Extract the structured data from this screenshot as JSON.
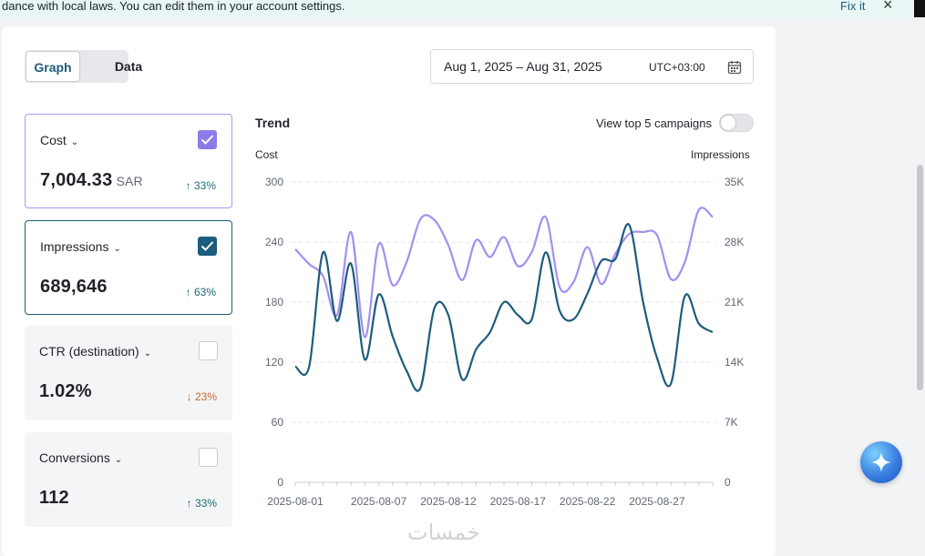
{
  "banner": {
    "message": "dance with local laws. You can edit them in your account settings.",
    "fix_label": "Fix it",
    "close_glyph": "×"
  },
  "view_toggle": {
    "graph_label": "Graph",
    "data_label": "Data",
    "selected": "Graph"
  },
  "date_picker": {
    "range": "Aug 1, 2025 – Aug 31, 2025",
    "timezone": "UTC+03:00",
    "icon": "calendar-icon"
  },
  "metrics": [
    {
      "label": "Cost",
      "value": "7,004.33",
      "unit": "SAR",
      "change": "↑ 33%",
      "direction": "up",
      "checked": true,
      "color": "#8b7be8"
    },
    {
      "label": "Impressions",
      "value": "689,646",
      "unit": "",
      "change": "↑ 63%",
      "direction": "up",
      "checked": true,
      "color": "#1d5c7c"
    },
    {
      "label": "CTR (destination)",
      "value": "1.02%",
      "unit": "",
      "change": "↓ 23%",
      "direction": "down",
      "checked": false
    },
    {
      "label": "Conversions",
      "value": "112",
      "unit": "",
      "change": "↑ 33%",
      "direction": "up",
      "checked": false
    }
  ],
  "chart": {
    "title": "Trend",
    "top_campaigns_label": "View top 5 campaigns",
    "top_campaigns_enabled": false,
    "left_axis_title": "Cost",
    "right_axis_title": "Impressions"
  },
  "chart_data": {
    "type": "line",
    "x": [
      "2025-08-01",
      "2025-08-02",
      "2025-08-03",
      "2025-08-04",
      "2025-08-05",
      "2025-08-06",
      "2025-08-07",
      "2025-08-08",
      "2025-08-09",
      "2025-08-10",
      "2025-08-11",
      "2025-08-12",
      "2025-08-13",
      "2025-08-14",
      "2025-08-15",
      "2025-08-16",
      "2025-08-17",
      "2025-08-18",
      "2025-08-19",
      "2025-08-20",
      "2025-08-21",
      "2025-08-22",
      "2025-08-23",
      "2025-08-24",
      "2025-08-25",
      "2025-08-26",
      "2025-08-27",
      "2025-08-28",
      "2025-08-29",
      "2025-08-30",
      "2025-08-31"
    ],
    "x_tick_labels": [
      "2025-08-01",
      "2025-08-07",
      "2025-08-12",
      "2025-08-17",
      "2025-08-22",
      "2025-08-27"
    ],
    "x_tick_indices": [
      0,
      6,
      11,
      16,
      21,
      26
    ],
    "series": [
      {
        "name": "Cost",
        "axis": "left",
        "color": "#a48ff0",
        "values": [
          233,
          218,
          206,
          167,
          250,
          145,
          238,
          197,
          220,
          263,
          262,
          237,
          202,
          242,
          225,
          245,
          216,
          230,
          265,
          195,
          200,
          235,
          198,
          228,
          248,
          250,
          247,
          203,
          220,
          272,
          265
        ]
      },
      {
        "name": "Impressions",
        "axis": "right",
        "color": "#1d5c7c",
        "values": [
          13500,
          13500,
          26800,
          18800,
          25500,
          14300,
          21900,
          17000,
          13000,
          11000,
          20300,
          19500,
          12000,
          15500,
          17500,
          21000,
          19500,
          19000,
          26800,
          20000,
          19000,
          22000,
          25800,
          26000,
          30000,
          21000,
          14500,
          11500,
          21700,
          18500,
          17500
        ]
      }
    ],
    "y_left": {
      "ticks": [
        "0",
        "60",
        "120",
        "180",
        "240",
        "300"
      ],
      "range": [
        0,
        300
      ]
    },
    "y_right": {
      "ticks": [
        "0",
        "7K",
        "14K",
        "21K",
        "28K",
        "35K"
      ],
      "range": [
        0,
        35000
      ]
    },
    "grid": true,
    "legend": "none"
  },
  "watermark": "خمسات"
}
